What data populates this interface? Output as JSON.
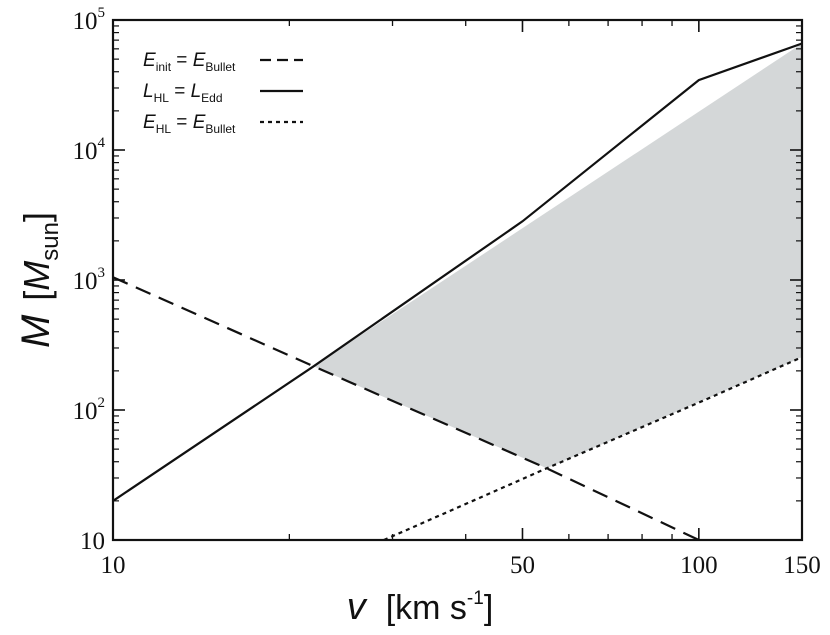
{
  "chart_data": {
    "type": "line",
    "xscale": "log",
    "yscale": "log",
    "xlim": [
      10,
      150
    ],
    "ylim": [
      10,
      100000
    ],
    "xlabel": {
      "var": "v",
      "unit_main": "[km s",
      "unit_sup": "-1",
      "unit_end": "]"
    },
    "ylabel": {
      "var": "M",
      "unit_open": "[",
      "unit_var": "M",
      "unit_sub": "sun",
      "unit_close": "]"
    },
    "xticks": [
      {
        "value": 10,
        "label": "10"
      },
      {
        "value": 50,
        "label": "50"
      },
      {
        "value": 100,
        "label": "100"
      },
      {
        "value": 150,
        "label": "150"
      }
    ],
    "yticks": [
      {
        "value": 10,
        "label": "10",
        "sup": ""
      },
      {
        "value": 100,
        "label": "10",
        "sup": "2"
      },
      {
        "value": 1000,
        "label": "10",
        "sup": "3"
      },
      {
        "value": 10000,
        "label": "10",
        "sup": "4"
      },
      {
        "value": 100000,
        "label": "10",
        "sup": "5"
      }
    ],
    "series": [
      {
        "style": "dashed",
        "label": {
          "lhs": "E",
          "lhs_sub": "init",
          "rhs": "E",
          "rhs_sub": "Bullet"
        },
        "x": [
          10,
          22,
          55,
          100
        ],
        "y": [
          1050,
          217,
          35.6,
          10
        ]
      },
      {
        "style": "solid",
        "label": {
          "lhs": "L",
          "lhs_sub": "HL",
          "rhs": "L",
          "rhs_sub": "Edd"
        },
        "x": [
          10,
          22,
          50,
          100,
          150
        ],
        "y": [
          20,
          217,
          2830,
          34500,
          66000
        ]
      },
      {
        "style": "dotted",
        "label": {
          "lhs": "E",
          "lhs_sub": "HL",
          "rhs": "E",
          "rhs_sub": "Bullet"
        },
        "x": [
          29,
          55,
          100,
          150
        ],
        "y": [
          10,
          35.6,
          114,
          255
        ]
      }
    ],
    "shaded_region": {
      "color": "#d4d7d8",
      "polygon": [
        [
          22,
          217
        ],
        [
          150,
          66000
        ],
        [
          150,
          255
        ],
        [
          55,
          35.6
        ]
      ]
    },
    "legend": "top-left",
    "grid": false
  }
}
